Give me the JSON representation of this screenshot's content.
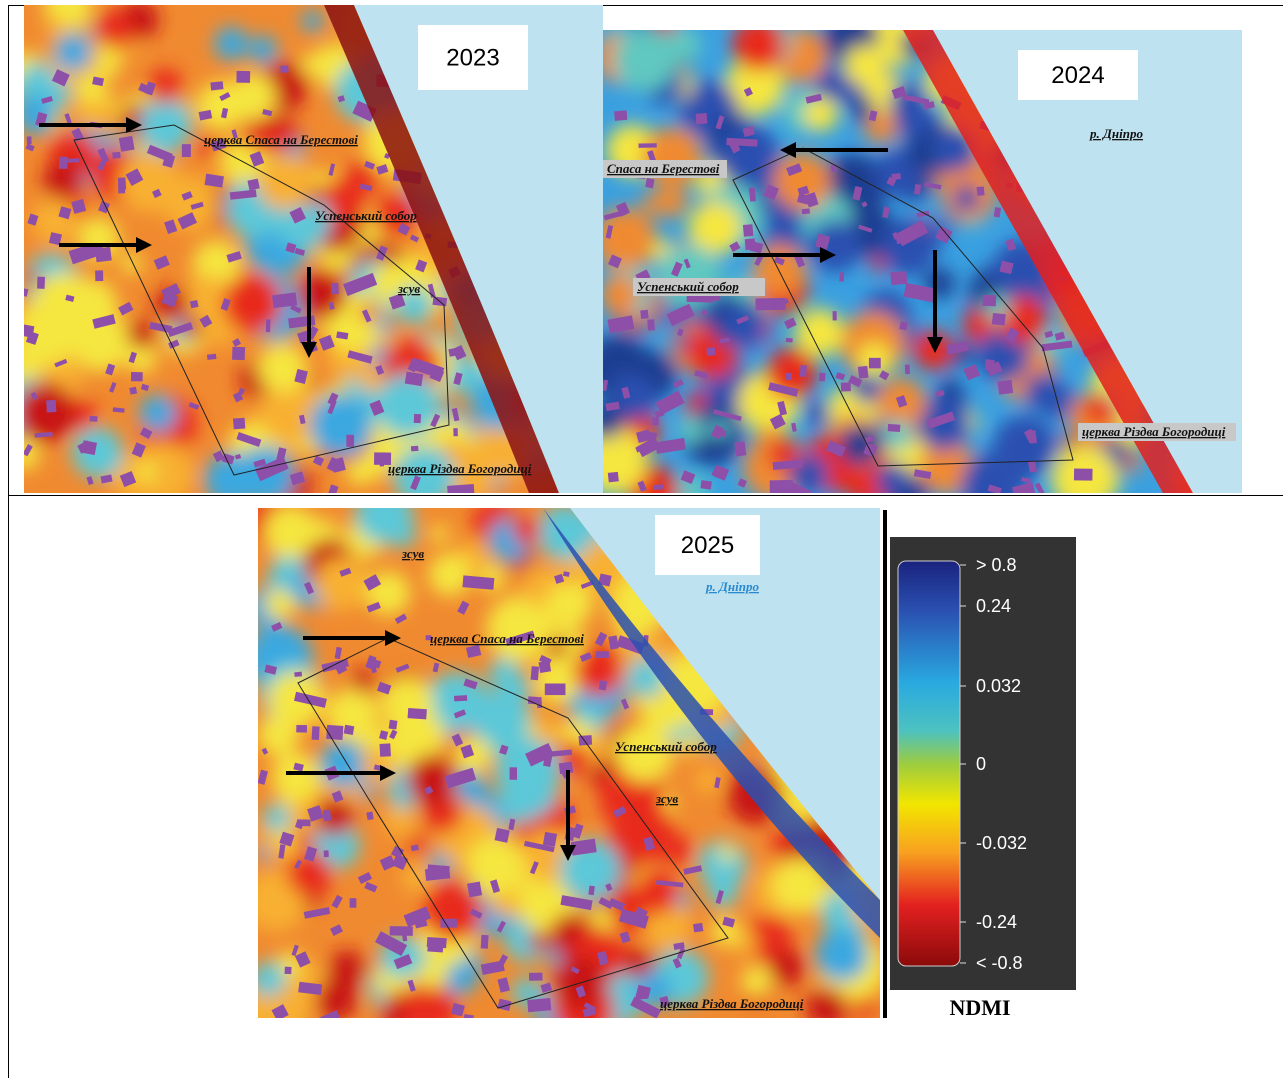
{
  "panels": [
    {
      "year": "2023",
      "labels": [
        "церква Спаса на Берестові",
        "Успенський собор",
        "зсув",
        "церква Різдва Богородиці"
      ]
    },
    {
      "year": "2024",
      "labels": [
        "р. Дніпро",
        "Спаса на Берестові",
        "Успенський собор",
        "церква  Різдва Богородиці"
      ]
    },
    {
      "year": "2025",
      "labels": [
        "зсув",
        "р. Дніпро",
        "церква Спаса на Берестові",
        "Успенський собор",
        "зсув",
        "церква Різдва Богородиці"
      ]
    }
  ],
  "legend": {
    "labels": [
      "> 0.8",
      "0.24",
      "0.032",
      "0",
      "-0.032",
      "-0.24",
      "< -0.8"
    ],
    "title": "NDMI"
  }
}
